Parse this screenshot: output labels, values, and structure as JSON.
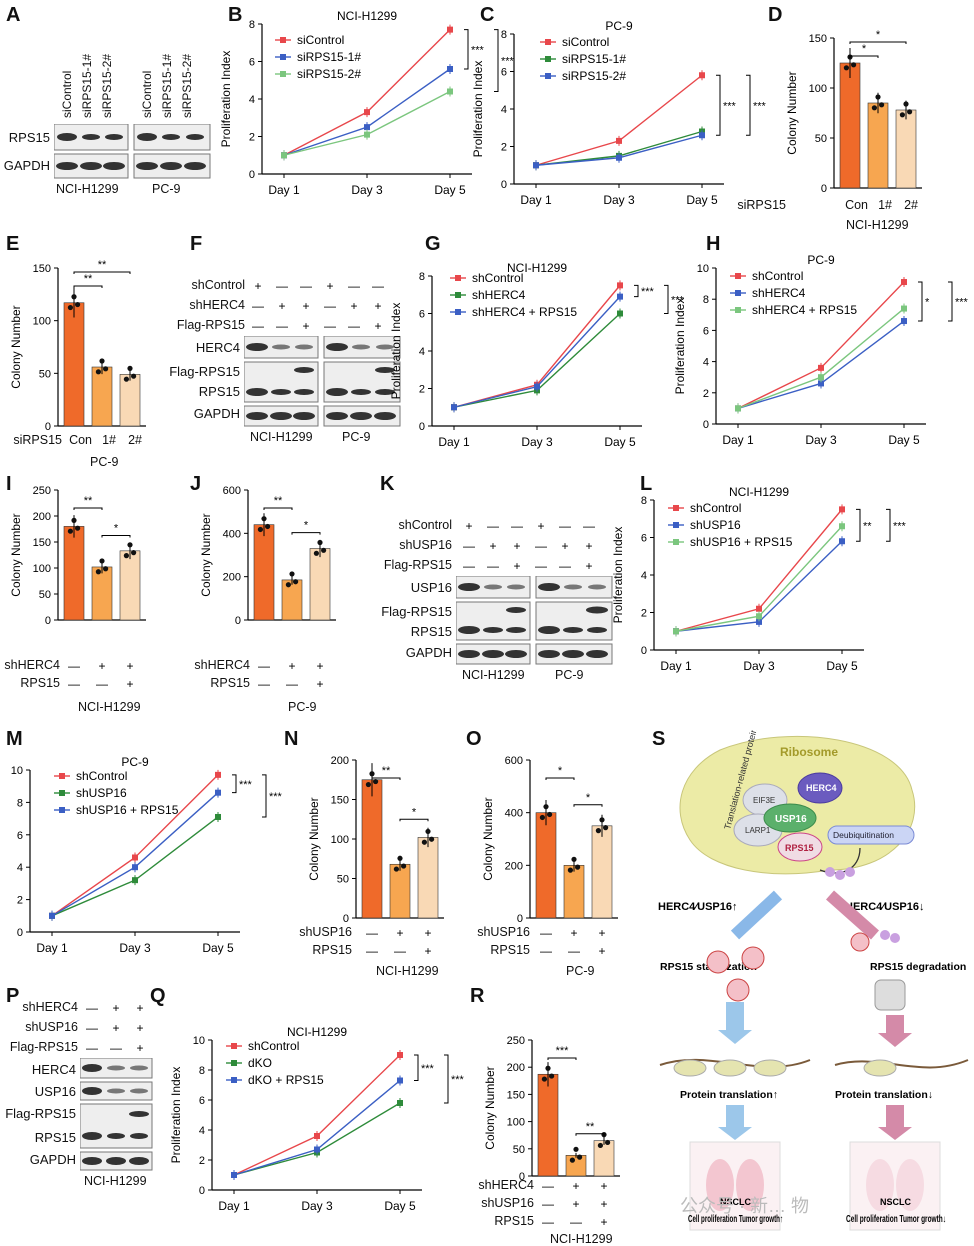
{
  "panels": [
    "A",
    "B",
    "C",
    "D",
    "E",
    "F",
    "G",
    "H",
    "I",
    "J",
    "K",
    "L",
    "M",
    "N",
    "O",
    "P",
    "Q",
    "R",
    "S"
  ],
  "labels": {
    "rps15": "RPS15",
    "gapdh": "GAPDH",
    "herc4": "HERC4",
    "usp16": "USP16",
    "flag_rps15": "Flag-RPS15",
    "h1299": "NCI-H1299",
    "pc9": "PC-9",
    "siControl": "siControl",
    "siRPS15_1": "siRPS15-1#",
    "siRPS15_2": "siRPS15-2#",
    "shControl": "shControl",
    "shHERC4": "shHERC4",
    "shUSP16": "shUSP16",
    "siRPS15": "siRPS15",
    "con": "Con",
    "n1": "1#",
    "n2": "2#",
    "plus": "+",
    "minus": "—",
    "prolif": "Proliferation Index",
    "colony": "Colony Number",
    "day1": "Day 1",
    "day3": "Day 3",
    "day5": "Day 5",
    "s3": "***",
    "s2": "**",
    "s1": "*"
  },
  "diagram": {
    "ribosome": "Ribosome",
    "trans_protein": "Translation-related protein",
    "eif3e": "EIF3E",
    "larp1": "LARP1",
    "usp16": "USP16",
    "herc4": "HERC4",
    "rps15": "RPS15",
    "deubiq": "Deubiquitination",
    "up": "HERC4∕USP16↑",
    "down": "HERC4∕USP16↓",
    "stab": "RPS15 stabilization",
    "degr": "RPS15 degradation",
    "pt_up": "Protein translation↑",
    "pt_down": "Protein translation↓",
    "nsclc": "NSCLC",
    "cp_up": "Cell proliferation Tumor growth↑",
    "cp_down": "Cell proliferation Tumor growth↓",
    "watermark": "公众号 · 新… 物"
  },
  "colors": {
    "red": "#e8474b",
    "blue": "#3b5fc4",
    "green": "#2e8b3a",
    "lgreen": "#7bc67e",
    "bar1": "#ef6a2a",
    "bar2": "#f7a650",
    "bar3": "#f9d9b5"
  },
  "chart_data": [
    {
      "panel": "B",
      "type": "line",
      "title": "NCI-H1299",
      "ylabel": "Proliferation Index",
      "categories": [
        "Day 1",
        "Day 3",
        "Day 5"
      ],
      "ylim": [
        0,
        8
      ],
      "series": [
        {
          "name": "siControl",
          "values": [
            1.0,
            3.3,
            7.7
          ]
        },
        {
          "name": "siRPS15-1#",
          "values": [
            1.0,
            2.5,
            5.6
          ]
        },
        {
          "name": "siRPS15-2#",
          "values": [
            1.0,
            2.1,
            4.4
          ]
        }
      ],
      "significance": [
        "***",
        "***"
      ]
    },
    {
      "panel": "C",
      "type": "line",
      "title": "PC-9",
      "ylabel": "Proliferation Index",
      "categories": [
        "Day 1",
        "Day 3",
        "Day 5"
      ],
      "ylim": [
        0,
        8
      ],
      "series": [
        {
          "name": "siControl",
          "values": [
            1.0,
            2.3,
            5.8
          ]
        },
        {
          "name": "siRPS15-1#",
          "values": [
            1.0,
            1.5,
            2.8
          ]
        },
        {
          "name": "siRPS15-2#",
          "values": [
            1.0,
            1.4,
            2.6
          ]
        }
      ],
      "significance": [
        "***",
        "***"
      ]
    },
    {
      "panel": "D",
      "type": "bar",
      "ylabel": "Colony Number",
      "categories": [
        "Con",
        "1#",
        "2#"
      ],
      "values": [
        125,
        85,
        78
      ],
      "ylim": [
        0,
        150
      ],
      "significance": [
        "*",
        "*"
      ]
    },
    {
      "panel": "E",
      "type": "bar",
      "ylabel": "Colony Number",
      "categories": [
        "Con",
        "1#",
        "2#"
      ],
      "values": [
        117,
        56,
        49
      ],
      "ylim": [
        0,
        150
      ],
      "significance": [
        "**",
        "**"
      ]
    },
    {
      "panel": "G",
      "type": "line",
      "title": "NCI-H1299",
      "ylabel": "Proliferation Index",
      "categories": [
        "Day 1",
        "Day 3",
        "Day 5"
      ],
      "ylim": [
        0,
        8
      ],
      "series": [
        {
          "name": "shControl",
          "values": [
            1.0,
            2.2,
            7.5
          ]
        },
        {
          "name": "shHERC4",
          "values": [
            1.0,
            1.9,
            6.0
          ]
        },
        {
          "name": "shHERC4 + RPS15",
          "values": [
            1.0,
            2.1,
            6.9
          ]
        }
      ],
      "significance": [
        "***",
        "***"
      ]
    },
    {
      "panel": "H",
      "type": "line",
      "title": "PC-9",
      "ylabel": "Proliferation Index",
      "categories": [
        "Day 1",
        "Day 3",
        "Day 5"
      ],
      "ylim": [
        0,
        10
      ],
      "series": [
        {
          "name": "shControl",
          "values": [
            1.0,
            3.6,
            9.1
          ]
        },
        {
          "name": "shHERC4",
          "values": [
            1.0,
            2.6,
            6.6
          ]
        },
        {
          "name": "shHERC4 + RPS15",
          "values": [
            1.0,
            3.0,
            7.4
          ]
        }
      ],
      "significance": [
        "*",
        "***"
      ]
    },
    {
      "panel": "I",
      "type": "bar",
      "ylabel": "Colony Number",
      "values": [
        180,
        102,
        133
      ],
      "ylim": [
        0,
        250
      ],
      "significance": [
        "**",
        "*"
      ]
    },
    {
      "panel": "J",
      "type": "bar",
      "ylabel": "Colony Number",
      "values": [
        440,
        185,
        330
      ],
      "ylim": [
        0,
        600
      ],
      "significance": [
        "**",
        "*"
      ]
    },
    {
      "panel": "L",
      "type": "line",
      "title": "NCI-H1299",
      "ylabel": "Proliferation Index",
      "categories": [
        "Day 1",
        "Day 3",
        "Day 5"
      ],
      "ylim": [
        0,
        8
      ],
      "series": [
        {
          "name": "shControl",
          "values": [
            1.0,
            2.2,
            7.5
          ]
        },
        {
          "name": "shUSP16",
          "values": [
            1.0,
            1.5,
            5.8
          ]
        },
        {
          "name": "shUSP16 + RPS15",
          "values": [
            1.0,
            1.8,
            6.6
          ]
        }
      ],
      "significance": [
        "**",
        "***"
      ]
    },
    {
      "panel": "M",
      "type": "line",
      "title": "PC-9",
      "ylabel": "Proliferation Index",
      "categories": [
        "Day 1",
        "Day 3",
        "Day 5"
      ],
      "ylim": [
        0,
        10
      ],
      "series": [
        {
          "name": "shControl",
          "values": [
            1.0,
            4.6,
            9.7
          ]
        },
        {
          "name": "shUSP16",
          "values": [
            1.0,
            3.2,
            7.1
          ]
        },
        {
          "name": "shUSP16 + RPS15",
          "values": [
            1.0,
            4.0,
            8.6
          ]
        }
      ],
      "significance": [
        "***",
        "***"
      ]
    },
    {
      "panel": "N",
      "type": "bar",
      "ylabel": "Colony Number",
      "values": [
        175,
        68,
        102
      ],
      "ylim": [
        0,
        200
      ],
      "significance": [
        "**",
        "*"
      ]
    },
    {
      "panel": "O",
      "type": "bar",
      "ylabel": "Colony Number",
      "values": [
        400,
        200,
        350
      ],
      "ylim": [
        0,
        600
      ],
      "significance": [
        "*",
        "*"
      ]
    },
    {
      "panel": "Q",
      "type": "line",
      "title": "NCI-H1299",
      "ylabel": "Proliferation Index",
      "categories": [
        "Day 1",
        "Day 3",
        "Day 5"
      ],
      "ylim": [
        0,
        10
      ],
      "series": [
        {
          "name": "shControl",
          "values": [
            1.0,
            3.6,
            9.0
          ]
        },
        {
          "name": "dKO",
          "values": [
            1.0,
            2.5,
            5.8
          ]
        },
        {
          "name": "dKO + RPS15",
          "values": [
            1.0,
            2.7,
            7.3
          ]
        }
      ],
      "significance": [
        "***",
        "***"
      ]
    },
    {
      "panel": "R",
      "type": "bar",
      "ylabel": "Colony Number",
      "values": [
        187,
        38,
        65
      ],
      "ylim": [
        0,
        250
      ],
      "significance": [
        "***",
        "**"
      ]
    }
  ],
  "dko": "dKO",
  "dko_rps15": "dKO + RPS15",
  "shHERC4_rps15": "shHERC4 + RPS15",
  "shUSP16_rps15": "shUSP16 + RPS15"
}
